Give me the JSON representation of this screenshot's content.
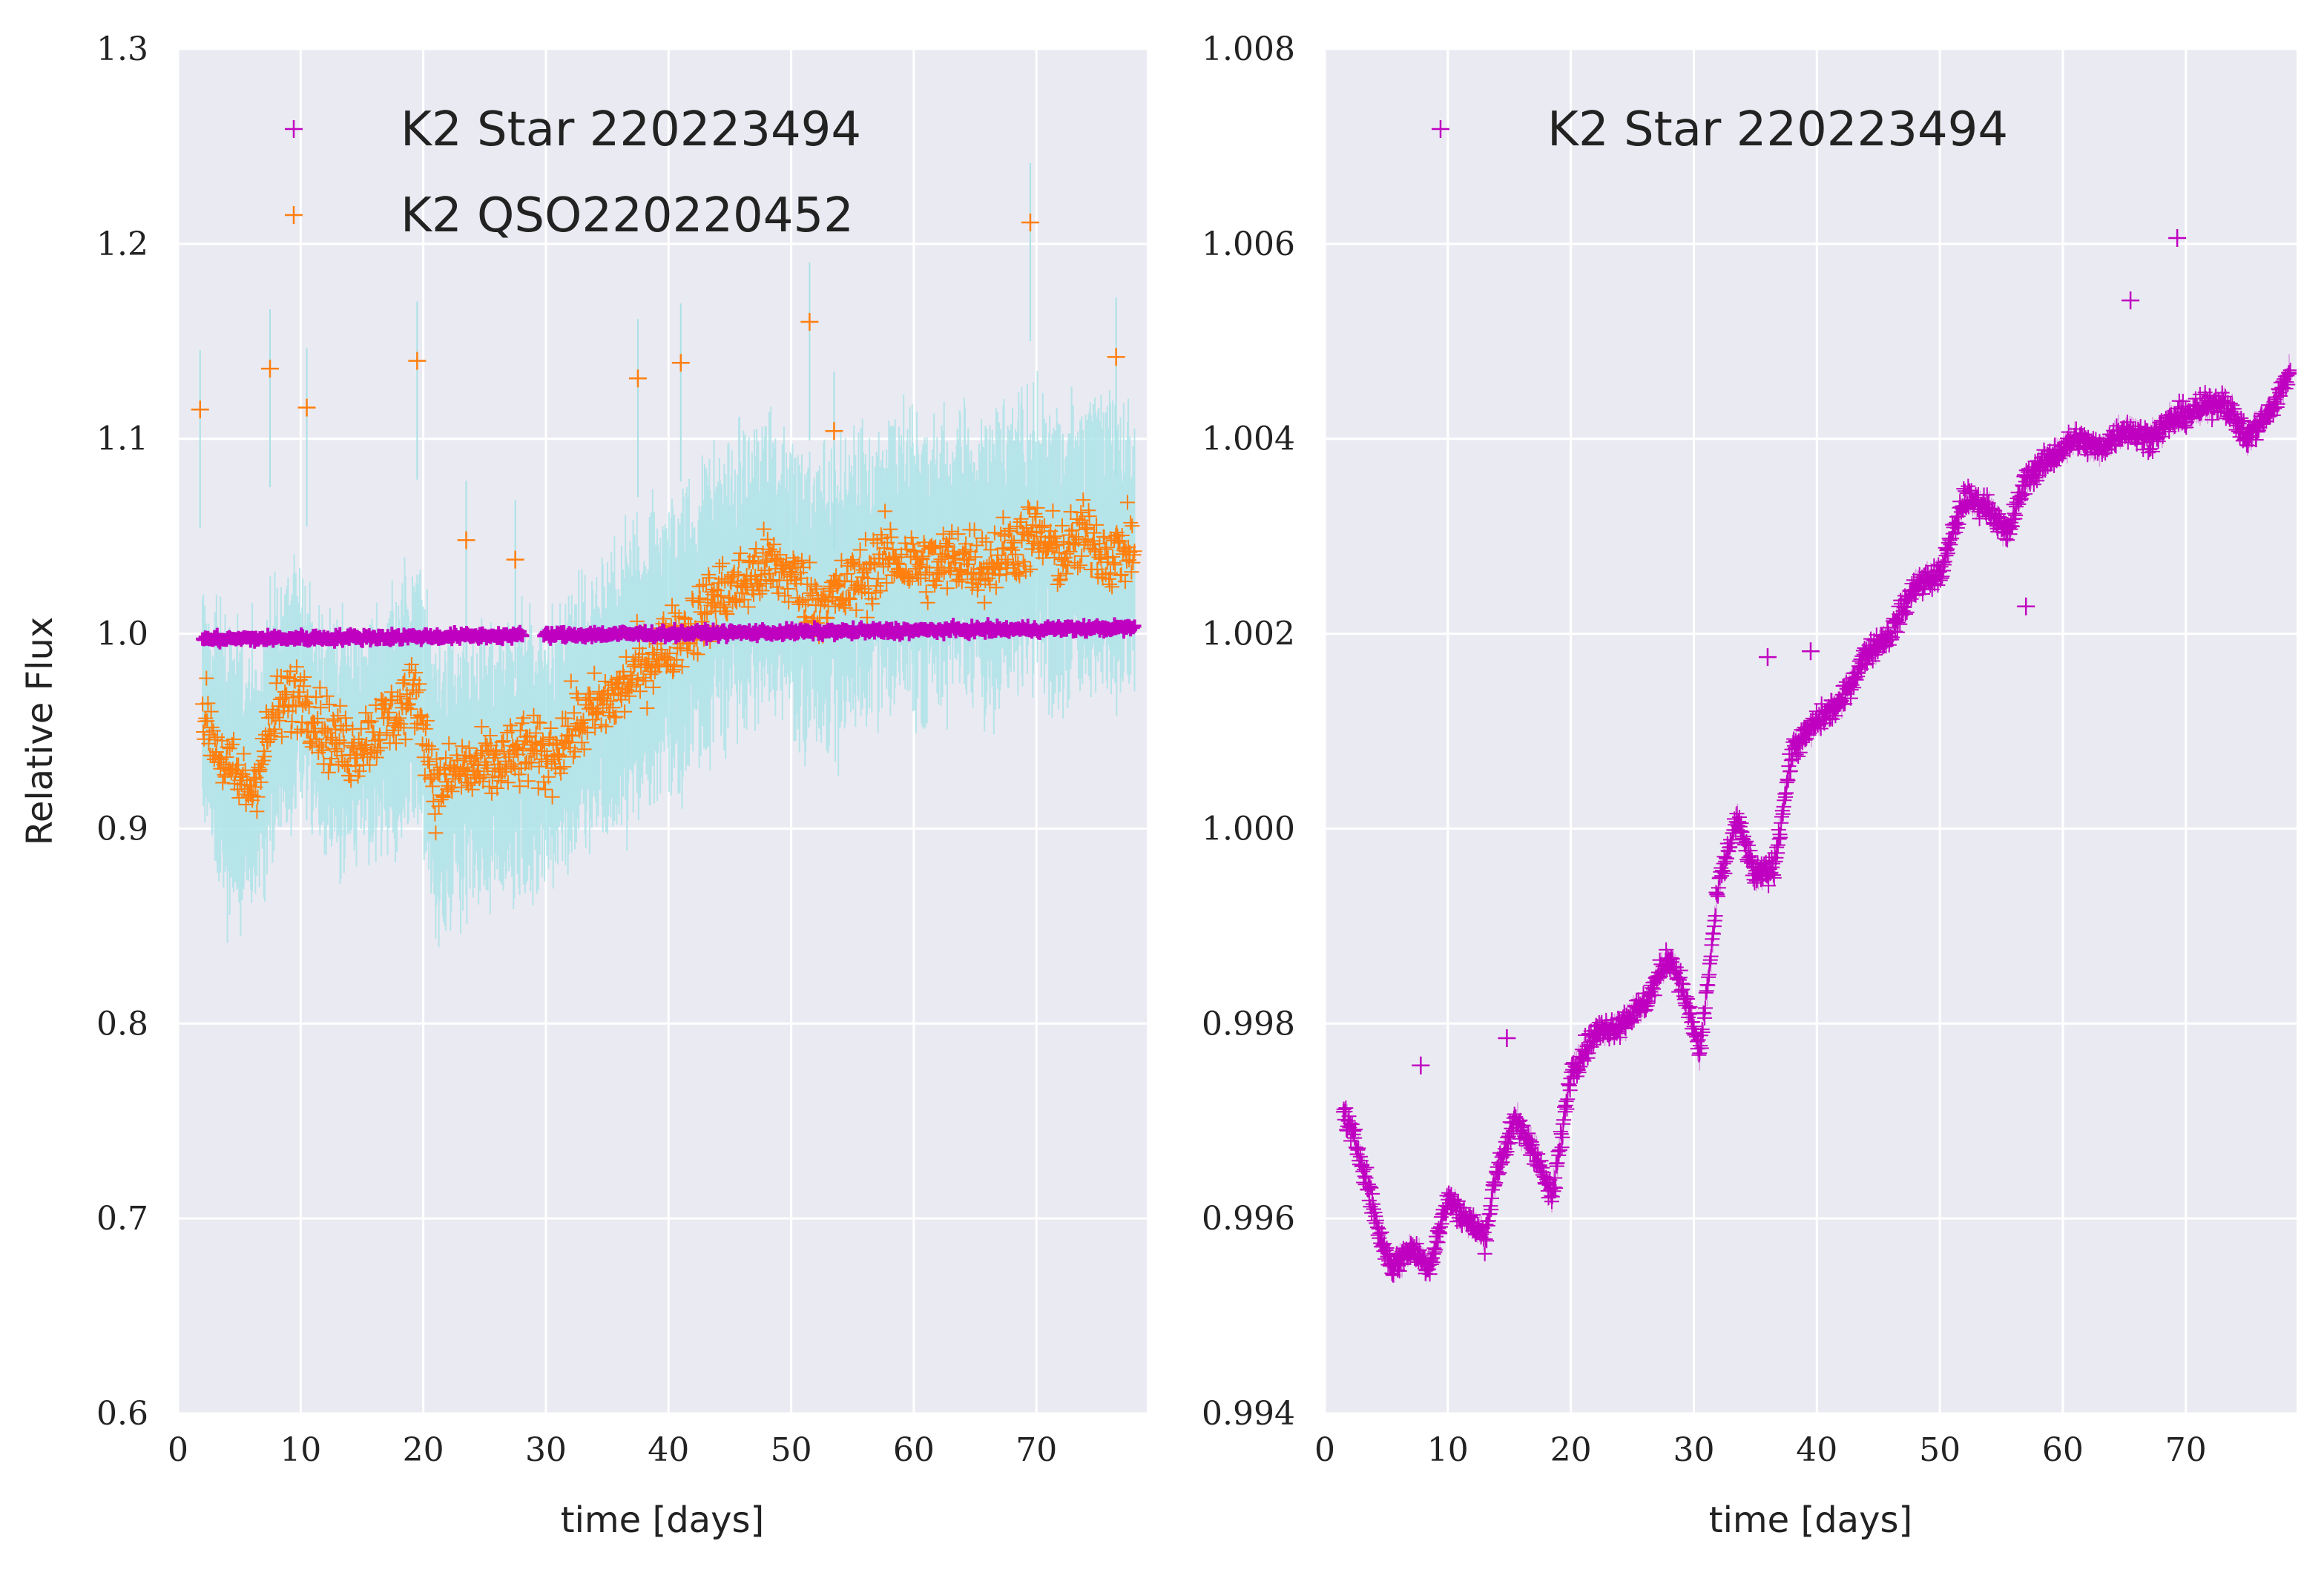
{
  "chart_data": [
    {
      "type": "scatter",
      "title": "",
      "xlabel": "time [days]",
      "ylabel": "Relative Flux",
      "xlim": [
        0,
        79
      ],
      "ylim": [
        0.6,
        1.3
      ],
      "grid": true,
      "legend_position": "top-left",
      "xticks": [
        "0",
        "10",
        "20",
        "30",
        "40",
        "50",
        "60",
        "70"
      ],
      "yticks": [
        "0.6",
        "0.7",
        "0.8",
        "0.9",
        "1.0",
        "1.1",
        "1.2",
        "1.3"
      ],
      "series": [
        {
          "name": "K2 QSO220220452",
          "color": "#ff7f0e",
          "errorbar_color": "#a8e2e6",
          "marker": "+",
          "x": [
            2,
            4,
            6,
            8,
            10,
            12,
            14,
            16,
            18,
            19.5,
            21,
            23,
            25,
            27,
            28.5,
            30,
            32,
            34,
            36,
            38,
            40,
            42,
            44,
            46,
            48,
            50,
            52,
            54,
            56,
            58,
            60,
            62,
            64,
            66,
            68,
            70,
            72,
            74,
            76,
            78
          ],
          "y": [
            0.96,
            0.93,
            0.92,
            0.96,
            0.97,
            0.95,
            0.94,
            0.95,
            0.96,
            0.97,
            0.92,
            0.93,
            0.93,
            0.935,
            0.94,
            0.935,
            0.95,
            0.96,
            0.97,
            0.985,
            0.995,
            1.005,
            1.02,
            1.025,
            1.035,
            1.03,
            1.015,
            1.02,
            1.03,
            1.04,
            1.035,
            1.035,
            1.04,
            1.035,
            1.045,
            1.05,
            1.04,
            1.05,
            1.04,
            1.045
          ],
          "error": [
            0.04,
            0.05,
            0.05,
            0.045,
            0.04,
            0.04,
            0.04,
            0.04,
            0.045,
            0.045,
            0.05,
            0.05,
            0.045,
            0.045,
            0.045,
            0.045,
            0.045,
            0.045,
            0.05,
            0.05,
            0.05,
            0.05,
            0.05,
            0.05,
            0.05,
            0.05,
            0.05,
            0.05,
            0.05,
            0.05,
            0.05,
            0.05,
            0.05,
            0.05,
            0.05,
            0.05,
            0.05,
            0.05,
            0.05,
            0.05
          ],
          "outliers_x": [
            1.8,
            7.5,
            10.5,
            19.5,
            23.5,
            27.5,
            37.5,
            41,
            51.5,
            53.5,
            69.5,
            76.5
          ],
          "outliers_y": [
            1.115,
            1.136,
            1.116,
            1.14,
            1.048,
            1.038,
            1.131,
            1.139,
            1.16,
            1.104,
            1.211,
            1.142
          ]
        },
        {
          "name": "K2 Star 220223494",
          "color": "#c000c0",
          "marker": "+",
          "x": [
            2,
            10,
            20,
            28,
            30,
            40,
            50,
            60,
            70,
            78
          ],
          "y": [
            0.997,
            0.996,
            0.997,
            0.998,
            0.997,
            1.0,
            1.002,
            1.003,
            1.004,
            1.005
          ]
        }
      ]
    },
    {
      "type": "scatter",
      "title": "",
      "xlabel": "time [days]",
      "ylabel": "",
      "xlim": [
        0,
        79
      ],
      "ylim": [
        0.994,
        1.008
      ],
      "grid": true,
      "legend_position": "top-left",
      "xticks": [
        "0",
        "10",
        "20",
        "30",
        "40",
        "50",
        "60",
        "70"
      ],
      "yticks": [
        "0.994",
        "0.996",
        "0.998",
        "1.000",
        "1.002",
        "1.004",
        "1.006",
        "1.008"
      ],
      "series": [
        {
          "name": "K2 Star 220223494",
          "color": "#c000c0",
          "marker": "+",
          "x": [
            1.5,
            3,
            4.5,
            5.5,
            7,
            8.5,
            10,
            11.5,
            13,
            14,
            15.5,
            17,
            18.5,
            20,
            22,
            24,
            26,
            28,
            29,
            30.5,
            32,
            33.5,
            35,
            36.5,
            38,
            40,
            42,
            44,
            46,
            48,
            50,
            52,
            54,
            55.5,
            57,
            59,
            61,
            63,
            65,
            67,
            69,
            71,
            73,
            75,
            77,
            78.5
          ],
          "y": [
            0.9971,
            0.9966,
            0.9958,
            0.9955,
            0.9957,
            0.9955,
            0.9962,
            0.996,
            0.9958,
            0.9965,
            0.997,
            0.9967,
            0.9962,
            0.9975,
            0.9979,
            0.998,
            0.9982,
            0.9987,
            0.9984,
            0.9977,
            0.9994,
            1.0001,
            0.9995,
            0.9996,
            1.0008,
            1.0011,
            1.0013,
            1.0018,
            1.002,
            1.0025,
            1.0026,
            1.0034,
            1.0033,
            1.003,
            1.0036,
            1.0038,
            1.004,
            1.0039,
            1.0041,
            1.004,
            1.0042,
            1.0043,
            1.0044,
            1.004,
            1.0043,
            1.0047
          ],
          "error": [
            0.00012,
            0.00012,
            0.00012,
            0.00012,
            0.00012,
            0.00012,
            0.00012,
            0.00012,
            0.00012,
            0.00012,
            0.00012,
            0.00012,
            0.00012,
            0.00012,
            0.00012,
            0.00012,
            0.00012,
            0.00012,
            0.00012,
            0.00012,
            0.00012,
            0.00012,
            0.00012,
            0.00012,
            0.00012,
            0.00012,
            0.00012,
            0.00012,
            0.00012,
            0.00012,
            0.00012,
            0.00012,
            0.00012,
            0.00012,
            0.00012,
            0.00012,
            0.00012,
            0.00012,
            0.00012,
            0.00012,
            0.00012,
            0.00012,
            0.00012,
            0.00012,
            0.00012,
            0.00012
          ],
          "outliers_x": [
            7.8,
            14.8,
            36,
            39.5,
            57,
            65.5,
            69.3
          ],
          "outliers_y": [
            0.99757,
            0.99785,
            1.00176,
            1.00182,
            1.00228,
            1.00542,
            1.00606
          ]
        }
      ]
    }
  ]
}
